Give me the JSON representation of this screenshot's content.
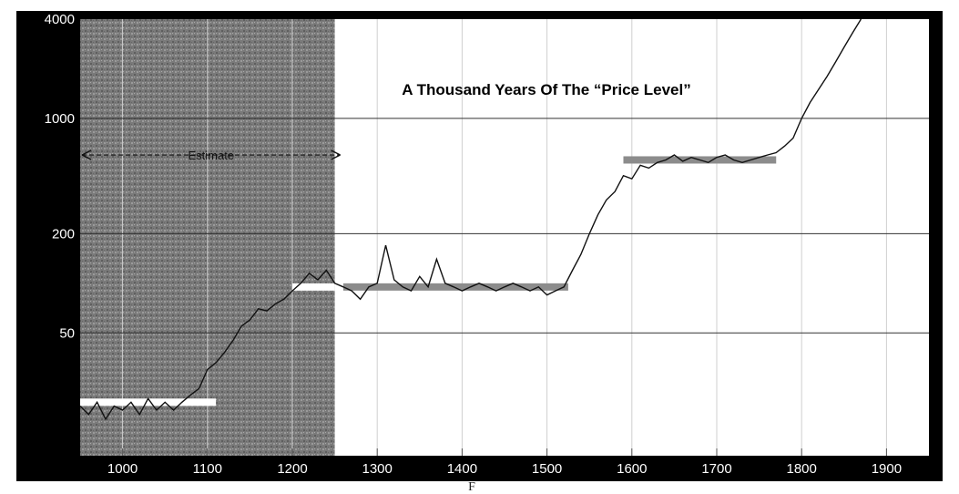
{
  "chart_data": {
    "type": "line",
    "title": "A Thousand Years Of The “Price Level”",
    "annotation": "Estimate",
    "estimate_range": [
      950,
      1250
    ],
    "footer": "F",
    "x_ticks": [
      1000,
      1100,
      1200,
      1300,
      1400,
      1500,
      1600,
      1700,
      1800,
      1900
    ],
    "y_ticks": [
      50,
      200,
      1000,
      4000
    ],
    "y_tick_labels": [
      "50",
      "200",
      "1000",
      "4000"
    ],
    "xlim": [
      950,
      1950
    ],
    "ylim": [
      9,
      4000
    ],
    "y_scale": "log",
    "grid": true,
    "colors": {
      "frame": "#000000",
      "series": "#111111",
      "plateau_white": "#ffffff",
      "plateau_gray": "#8c8c8c",
      "estimate_shade": "#808080"
    },
    "plateaus": [
      {
        "x": [
          950,
          1110
        ],
        "y": 19,
        "color": "white"
      },
      {
        "x": [
          1200,
          1250
        ],
        "y": 95,
        "color": "white"
      },
      {
        "x": [
          1260,
          1525
        ],
        "y": 95,
        "color": "gray"
      },
      {
        "x": [
          1590,
          1770
        ],
        "y": 560,
        "color": "gray"
      }
    ],
    "series": [
      {
        "points": [
          [
            950,
            18
          ],
          [
            960,
            16
          ],
          [
            970,
            19
          ],
          [
            980,
            15
          ],
          [
            990,
            18
          ],
          [
            1000,
            17
          ],
          [
            1010,
            19
          ],
          [
            1020,
            16
          ],
          [
            1030,
            20
          ],
          [
            1040,
            17
          ],
          [
            1050,
            19
          ],
          [
            1060,
            17
          ],
          [
            1070,
            19
          ],
          [
            1080,
            21
          ],
          [
            1090,
            23
          ],
          [
            1100,
            30
          ],
          [
            1110,
            33
          ],
          [
            1120,
            38
          ],
          [
            1130,
            45
          ],
          [
            1140,
            55
          ],
          [
            1150,
            60
          ],
          [
            1160,
            70
          ],
          [
            1170,
            68
          ],
          [
            1180,
            75
          ],
          [
            1190,
            80
          ],
          [
            1200,
            90
          ],
          [
            1210,
            100
          ],
          [
            1220,
            115
          ],
          [
            1230,
            105
          ],
          [
            1240,
            120
          ],
          [
            1250,
            100
          ],
          [
            1260,
            95
          ],
          [
            1270,
            90
          ],
          [
            1280,
            80
          ],
          [
            1290,
            95
          ],
          [
            1300,
            100
          ],
          [
            1310,
            170
          ],
          [
            1320,
            105
          ],
          [
            1330,
            95
          ],
          [
            1340,
            90
          ],
          [
            1350,
            110
          ],
          [
            1360,
            95
          ],
          [
            1370,
            140
          ],
          [
            1380,
            100
          ],
          [
            1390,
            95
          ],
          [
            1400,
            90
          ],
          [
            1410,
            95
          ],
          [
            1420,
            100
          ],
          [
            1430,
            95
          ],
          [
            1440,
            90
          ],
          [
            1450,
            95
          ],
          [
            1460,
            100
          ],
          [
            1470,
            95
          ],
          [
            1480,
            90
          ],
          [
            1490,
            95
          ],
          [
            1500,
            85
          ],
          [
            1510,
            90
          ],
          [
            1520,
            95
          ],
          [
            1530,
            120
          ],
          [
            1540,
            150
          ],
          [
            1550,
            200
          ],
          [
            1560,
            260
          ],
          [
            1570,
            320
          ],
          [
            1580,
            360
          ],
          [
            1590,
            450
          ],
          [
            1600,
            430
          ],
          [
            1610,
            520
          ],
          [
            1620,
            500
          ],
          [
            1630,
            540
          ],
          [
            1640,
            560
          ],
          [
            1650,
            600
          ],
          [
            1660,
            550
          ],
          [
            1670,
            580
          ],
          [
            1680,
            560
          ],
          [
            1690,
            540
          ],
          [
            1700,
            580
          ],
          [
            1710,
            600
          ],
          [
            1720,
            560
          ],
          [
            1730,
            540
          ],
          [
            1740,
            560
          ],
          [
            1750,
            580
          ],
          [
            1760,
            600
          ],
          [
            1770,
            620
          ],
          [
            1780,
            680
          ],
          [
            1790,
            760
          ],
          [
            1800,
            1000
          ],
          [
            1810,
            1250
          ],
          [
            1820,
            1500
          ],
          [
            1830,
            1800
          ],
          [
            1840,
            2200
          ],
          [
            1850,
            2700
          ],
          [
            1860,
            3300
          ],
          [
            1870,
            4000
          ]
        ]
      }
    ]
  }
}
